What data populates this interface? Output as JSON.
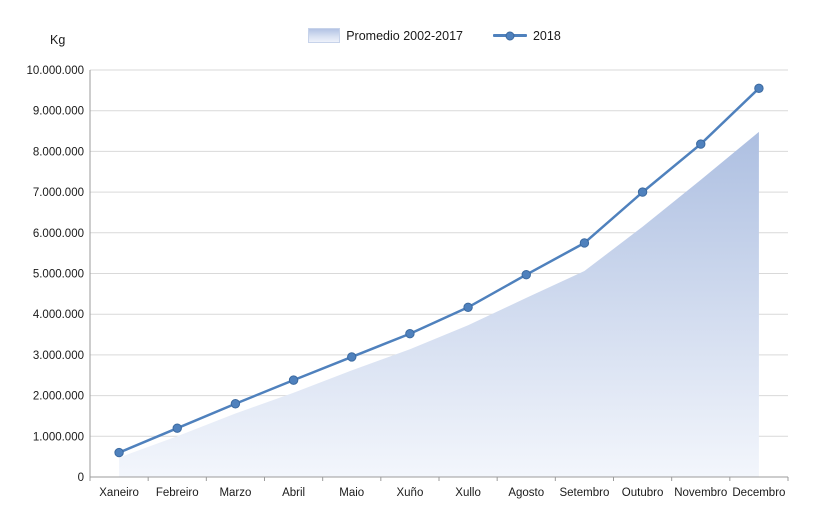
{
  "chart_data": {
    "type": "area",
    "title": "",
    "ylabel": "Kg",
    "xlabel": "",
    "categories": [
      "Xaneiro",
      "Febreiro",
      "Marzo",
      "Abril",
      "Maio",
      "Xuño",
      "Xullo",
      "Agosto",
      "Setembro",
      "Outubro",
      "Novembro",
      "Decembro"
    ],
    "series": [
      {
        "name": "Promedio 2002-2017",
        "type": "area",
        "values": [
          480000,
          1000000,
          1560000,
          2070000,
          2620000,
          3140000,
          3730000,
          4400000,
          5060000,
          6150000,
          7300000,
          8480000
        ]
      },
      {
        "name": "2018",
        "type": "line",
        "values": [
          600000,
          1200000,
          1800000,
          2380000,
          2950000,
          3520000,
          4170000,
          4970000,
          5750000,
          7000000,
          8180000,
          9550000
        ]
      }
    ],
    "ylim": [
      0,
      10000000
    ],
    "y_tick_step": 1000000,
    "y_tick_labels": [
      "0",
      "1.000.000",
      "2.000.000",
      "3.000.000",
      "4.000.000",
      "5.000.000",
      "6.000.000",
      "7.000.000",
      "8.000.000",
      "9.000.000",
      "10.000.000"
    ],
    "grid": true,
    "legend_position": "top-center",
    "colors": {
      "line": "#4f81bd",
      "marker_fill": "#4f81bd",
      "marker_stroke": "#3c6aa0",
      "area_top": "#adbfe1",
      "area_bottom": "#f3f6fc",
      "gridline": "#d9d9d9",
      "axis": "#9b9b9b",
      "text": "#1a1a1a"
    }
  }
}
